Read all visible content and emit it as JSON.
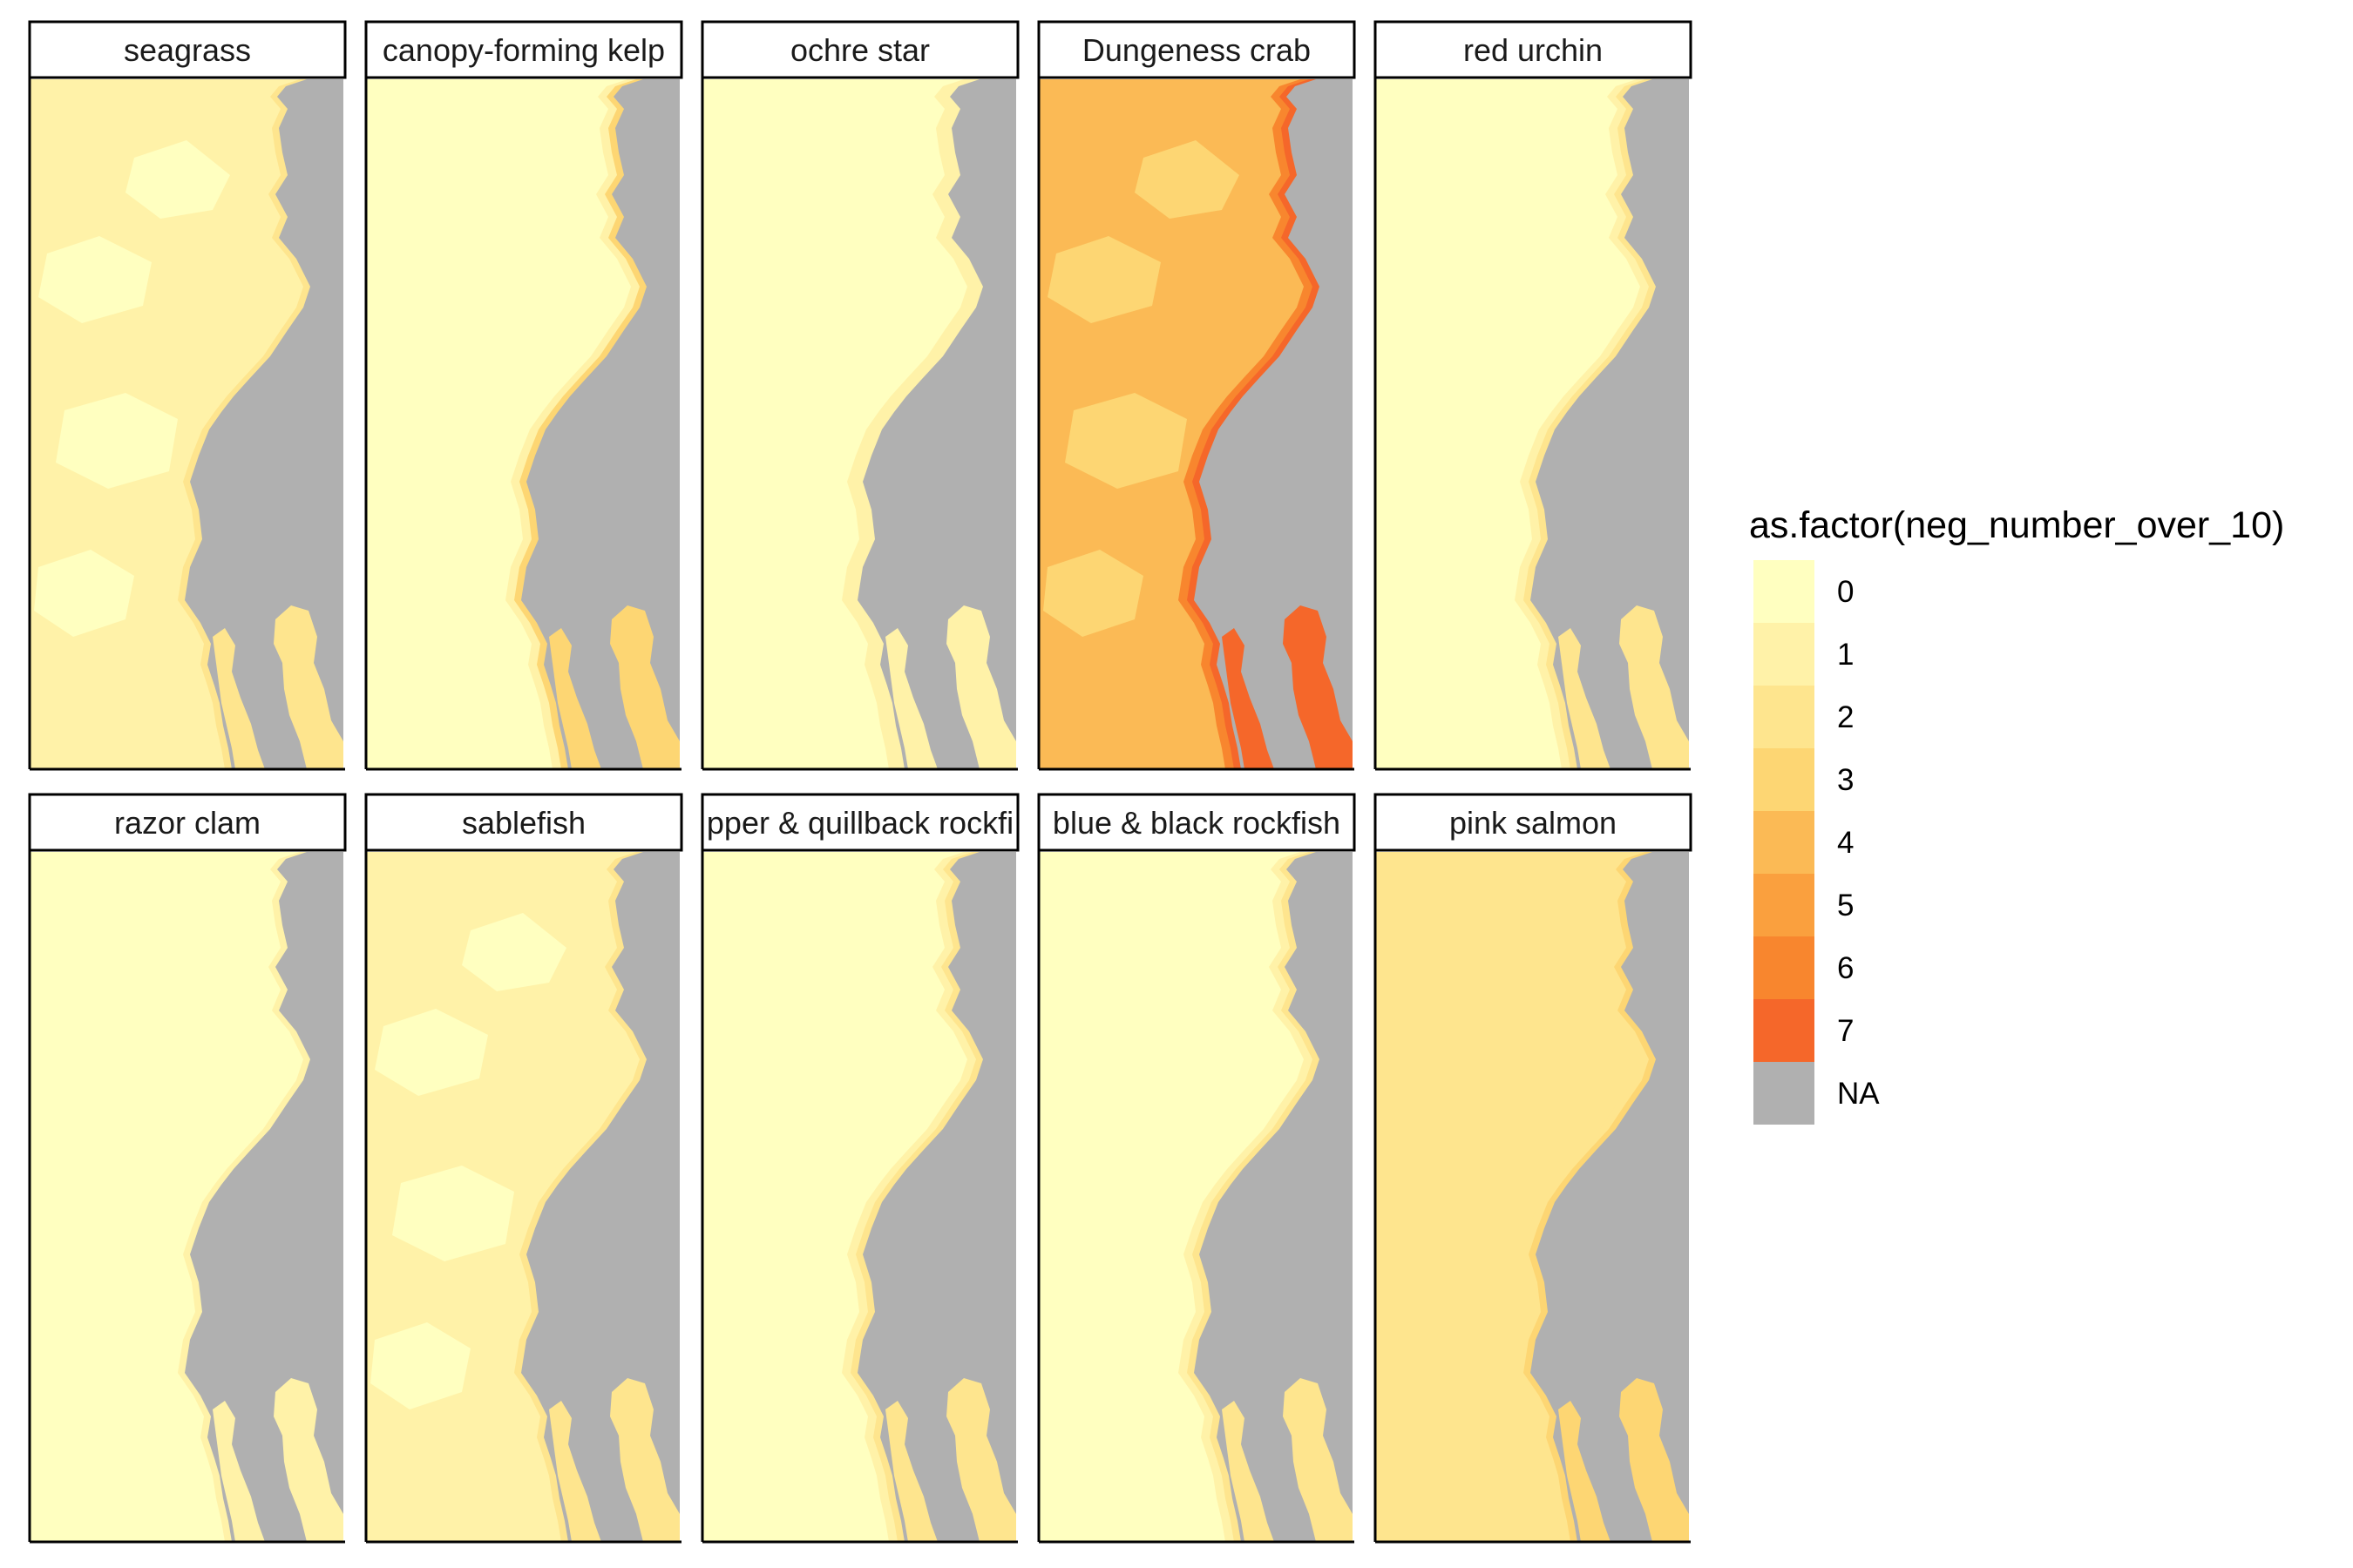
{
  "chart_data": {
    "type": "heatmap",
    "subtype": "faceted raster map",
    "facet_layout": {
      "rows": 2,
      "cols": 5
    },
    "legend": {
      "title": "as.factor(neg_number_over_10)",
      "placement": "right",
      "entries": [
        {
          "label": "0",
          "color": "#FFFFC0"
        },
        {
          "label": "1",
          "color": "#FFF2A8"
        },
        {
          "label": "2",
          "color": "#FEE58E"
        },
        {
          "label": "3",
          "color": "#FDD673"
        },
        {
          "label": "4",
          "color": "#FBBA55"
        },
        {
          "label": "5",
          "color": "#FAA03E"
        },
        {
          "label": "6",
          "color": "#F8862E"
        },
        {
          "label": "7",
          "color": "#F5672A"
        },
        {
          "label": "NA",
          "color": "#B0B0B0"
        }
      ]
    },
    "panels": [
      {
        "label": "seagrass",
        "base_level": 1,
        "patch_level": 0,
        "coast_levels": [
          1,
          2
        ]
      },
      {
        "label": "canopy-forming kelp",
        "base_level": 0,
        "patch_level": null,
        "coast_levels": [
          1,
          3
        ]
      },
      {
        "label": "ochre star",
        "base_level": 0,
        "patch_level": null,
        "coast_levels": [
          1,
          1
        ]
      },
      {
        "label": "Dungeness crab",
        "base_level": 4,
        "patch_level": 3,
        "coast_levels": [
          6,
          7
        ]
      },
      {
        "label": "red urchin",
        "base_level": 0,
        "patch_level": null,
        "coast_levels": [
          1,
          2
        ]
      },
      {
        "label": "razor clam",
        "base_level": 0,
        "patch_level": null,
        "coast_levels": [
          0,
          1
        ]
      },
      {
        "label": "sablefish",
        "base_level": 1,
        "patch_level": 0,
        "coast_levels": [
          1,
          2
        ]
      },
      {
        "label": "pper & quillback rockfi",
        "base_level": 0,
        "patch_level": null,
        "coast_levels": [
          1,
          2
        ]
      },
      {
        "label": "blue & black rockfish",
        "base_level": 0,
        "patch_level": null,
        "coast_levels": [
          1,
          2
        ]
      },
      {
        "label": "pink salmon",
        "base_level": 2,
        "patch_level": null,
        "coast_levels": [
          2,
          3
        ]
      }
    ]
  }
}
